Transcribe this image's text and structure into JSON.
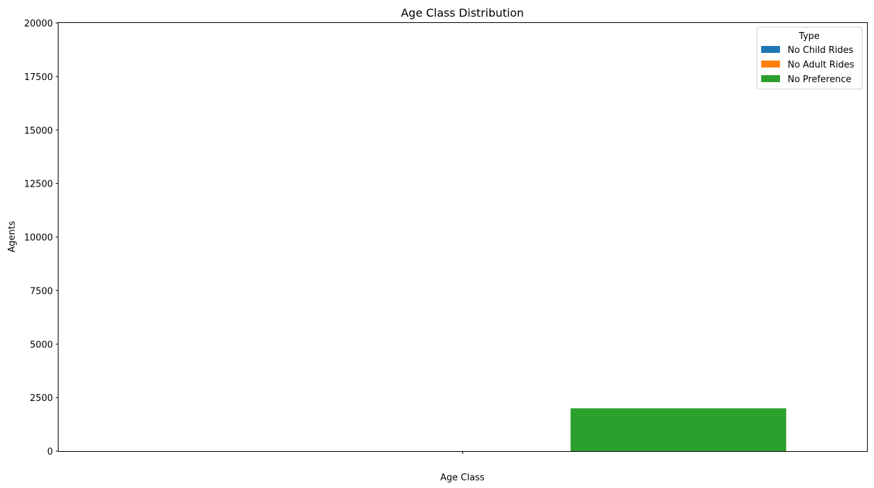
{
  "chart_data": {
    "type": "bar",
    "title": "Age Class Distribution",
    "xlabel": "Age Class",
    "ylabel": "Agents",
    "categories": [
      ""
    ],
    "ylim": [
      0,
      20000
    ],
    "yticks": [
      0,
      2500,
      5000,
      7500,
      10000,
      12500,
      15000,
      17500,
      20000
    ],
    "grid": false,
    "legend": {
      "title": "Type",
      "placement": "top-right"
    },
    "series": [
      {
        "name": "No Child Rides",
        "color": "#1f77b4",
        "values": [
          0
        ]
      },
      {
        "name": "No Adult Rides",
        "color": "#ff7f0e",
        "values": [
          0
        ]
      },
      {
        "name": "No Preference",
        "color": "#2ca02c",
        "values": [
          2000
        ]
      }
    ]
  }
}
